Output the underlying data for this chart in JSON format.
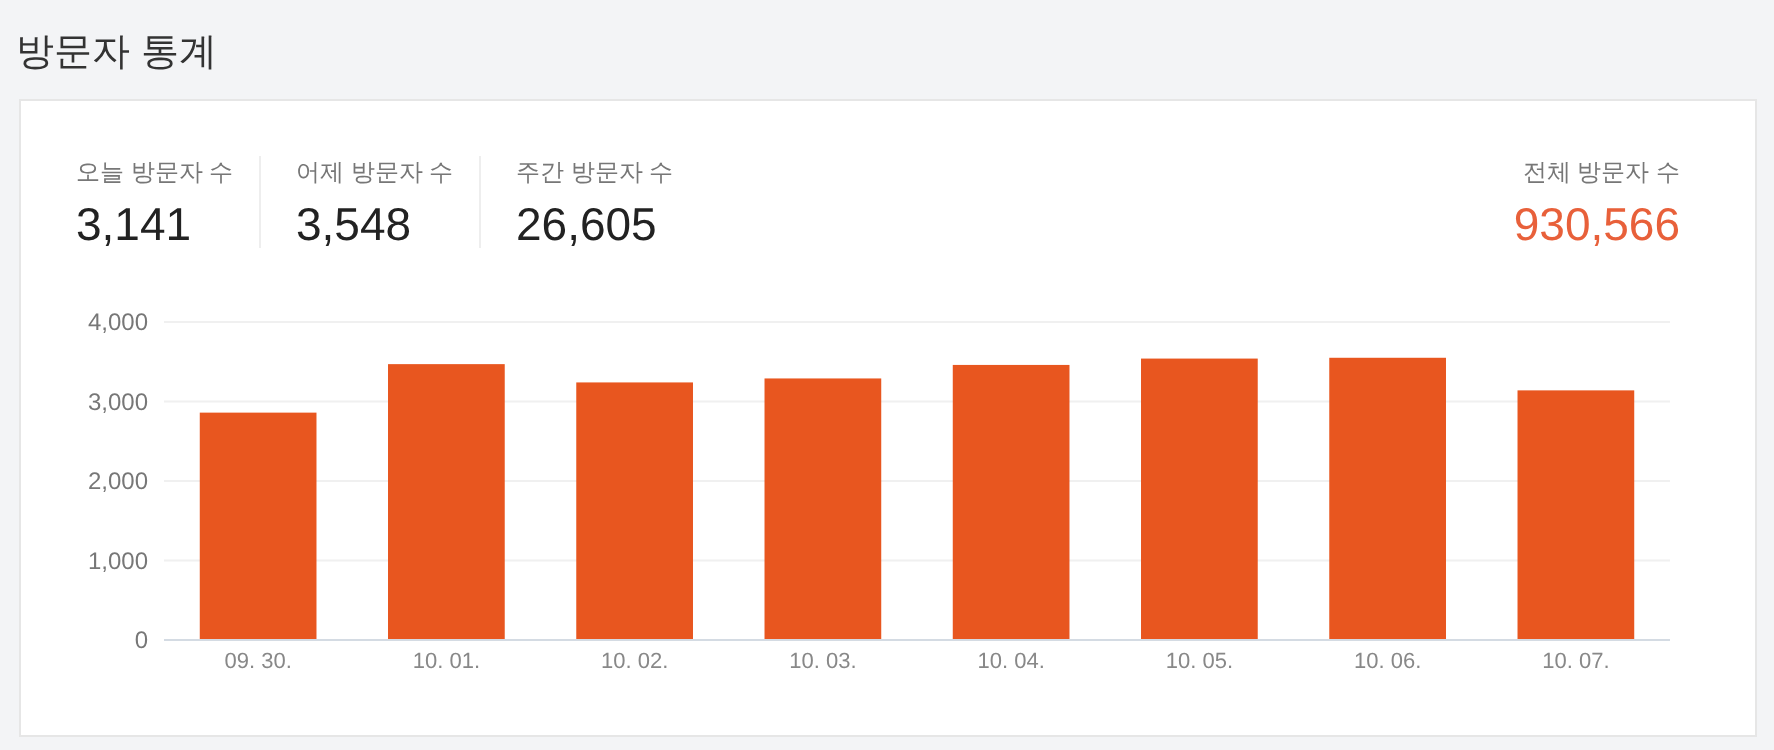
{
  "chart_data": {
    "type": "bar",
    "title": "방문자 통계",
    "categories": [
      "09. 30.",
      "10. 01.",
      "10. 02.",
      "10. 03.",
      "10. 04.",
      "10. 05.",
      "10. 06.",
      "10. 07."
    ],
    "values": [
      2860,
      3470,
      3240,
      3290,
      3460,
      3540,
      3550,
      3140
    ],
    "color": "#e8561f",
    "ylim": [
      0,
      4000
    ],
    "yticks": [
      0,
      {
        "value": 1000,
        "label": "1,000"
      },
      {
        "value": 2000,
        "label": "2,000"
      },
      {
        "value": 3000,
        "label": "3,000"
      },
      {
        "value": 4000,
        "label": "4,000"
      }
    ],
    "grid": "y",
    "annotations": [
      "오늘 방문자 수",
      "3,141",
      "어제 방문자 수",
      "3,548",
      "주간 방문자 수",
      "26,605",
      "전체 방문자 수",
      "930,566"
    ]
  }
}
